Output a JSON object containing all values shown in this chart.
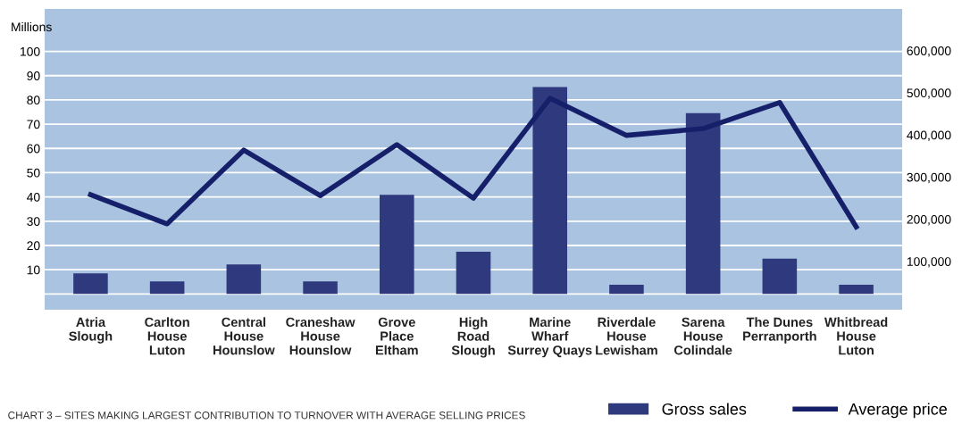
{
  "chart_data": {
    "type": "bar",
    "title": "CHART 3 – SITES MAKING LARGEST CONTRIBUTION TO TURNOVER WITH AVERAGE SELLING PRICES",
    "ylabel": "Millions",
    "categories": [
      "Atria\nSlough",
      "Carlton\nHouse\nLuton",
      "Central\nHouse\nHounslow",
      "Craneshaw\nHouse\nHounslow",
      "Grove\nPlace\nEltham",
      "High\nRoad\nSlough",
      "Marine\nWharf\nSurrey Quays",
      "Riverdale\nHouse\nLewisham",
      "Sarena\nHouse\nColindale",
      "The Dunes\nPerranporth",
      "Whitbread\nHouse\nLuton"
    ],
    "series": [
      {
        "name": "Gross sales",
        "color": "#2f3a7e",
        "values": [
          8.5,
          5.2,
          12.2,
          5.2,
          40.9,
          17.4,
          85.3,
          3.8,
          74.5,
          14.6,
          3.8
        ]
      },
      {
        "name": "Average price",
        "type": "line",
        "axis": "y2",
        "color": "#16206a",
        "values": [
          258000,
          189000,
          364000,
          256000,
          377000,
          250000,
          487000,
          399000,
          415000,
          477000,
          182000
        ]
      }
    ],
    "ylim": [
      -6.5,
      117.5
    ],
    "yticks": [
      {
        "value": 0,
        "label": null
      },
      10,
      20,
      30,
      40,
      50,
      60,
      70,
      80,
      90,
      100
    ],
    "y2lim": [
      -14800,
      699000
    ],
    "y2ticks": [
      {
        "value": 100000,
        "label": "100,000"
      },
      {
        "value": 200000,
        "label": "200,000"
      },
      {
        "value": 300000,
        "label": "300,000"
      },
      {
        "value": 400000,
        "label": "400,000"
      },
      {
        "value": 500000,
        "label": "500,000"
      },
      {
        "value": 600000,
        "label": "600,000"
      }
    ],
    "grid": "y",
    "legend": "bottom right",
    "marker": "none",
    "line_style": "solid"
  }
}
